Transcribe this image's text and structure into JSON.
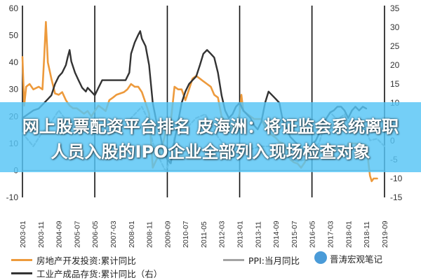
{
  "chart_data": {
    "type": "line",
    "title": "",
    "xlabel": "",
    "ylabel": "",
    "y_left": {
      "min": -10,
      "max": 60,
      "ticks": [
        "-10",
        "0",
        "10",
        "20",
        "30",
        "40",
        "50",
        "60"
      ]
    },
    "y_right": {
      "min": -15,
      "max": 35,
      "ticks": [
        "-15",
        "-10",
        "-5",
        "0",
        "5",
        "10",
        "15",
        "20",
        "25",
        "30",
        "35"
      ]
    },
    "x_range": [
      2003.0,
      2019.67
    ],
    "x_ticks": [
      "2003-01",
      "2003-11",
      "2004-09",
      "2005-07",
      "2006-05",
      "2007-03",
      "2008-01",
      "2008-11",
      "2009-09",
      "2010-07",
      "2011-05",
      "2012-03",
      "2013-01",
      "2013-11",
      "2014-09",
      "2015-07",
      "2016-05",
      "2017-03",
      "2018-01",
      "2018-11",
      "2019-09"
    ],
    "vlines": [
      2003.0,
      2006.33,
      2009.67,
      2013.0,
      2016.33,
      2019.67
    ],
    "series": [
      {
        "name": "房地产开发投资:累计同比",
        "axis": "left",
        "color": "#ED9A3C",
        "points": [
          [
            2003.0,
            42
          ],
          [
            2003.08,
            24
          ],
          [
            2003.17,
            31
          ],
          [
            2003.33,
            32
          ],
          [
            2003.5,
            30
          ],
          [
            2003.75,
            31
          ],
          [
            2003.92,
            30
          ],
          [
            2004.0,
            42
          ],
          [
            2004.08,
            55
          ],
          [
            2004.17,
            40
          ],
          [
            2004.33,
            34
          ],
          [
            2004.5,
            28.5
          ],
          [
            2004.67,
            28
          ],
          [
            2004.83,
            29
          ],
          [
            2005.0,
            26
          ],
          [
            2005.17,
            24
          ],
          [
            2005.33,
            23
          ],
          [
            2005.5,
            23
          ],
          [
            2005.67,
            22
          ],
          [
            2005.83,
            21
          ],
          [
            2006.0,
            22
          ],
          [
            2006.17,
            20
          ],
          [
            2006.33,
            22
          ],
          [
            2006.5,
            24
          ],
          [
            2006.67,
            23
          ],
          [
            2006.83,
            22
          ],
          [
            2007.0,
            26
          ],
          [
            2007.17,
            27
          ],
          [
            2007.33,
            28
          ],
          [
            2007.5,
            28.5
          ],
          [
            2007.67,
            29
          ],
          [
            2007.83,
            30
          ],
          [
            2008.0,
            32
          ],
          [
            2008.17,
            31
          ],
          [
            2008.33,
            31
          ],
          [
            2008.5,
            29
          ],
          [
            2008.67,
            25
          ],
          [
            2008.83,
            21
          ],
          [
            2009.0,
            1
          ],
          [
            2009.17,
            4
          ],
          [
            2009.33,
            6
          ],
          [
            2009.5,
            11
          ],
          [
            2009.67,
            17
          ],
          [
            2009.83,
            18
          ],
          [
            2010.0,
            31
          ],
          [
            2010.17,
            30
          ],
          [
            2010.33,
            30
          ],
          [
            2010.5,
            26
          ],
          [
            2010.67,
            30
          ],
          [
            2010.83,
            34
          ],
          [
            2011.0,
            35
          ],
          [
            2011.17,
            34
          ],
          [
            2011.33,
            33
          ],
          [
            2011.5,
            32
          ],
          [
            2011.67,
            31
          ],
          [
            2011.83,
            28
          ],
          [
            2012.0,
            27
          ],
          [
            2012.17,
            20
          ],
          [
            2012.33,
            18
          ],
          [
            2012.5,
            15
          ],
          [
            2012.67,
            16
          ],
          [
            2012.83,
            17
          ],
          [
            2013.0,
            21
          ],
          [
            2013.08,
            28
          ],
          [
            2013.17,
            22
          ],
          [
            2013.33,
            21
          ],
          [
            2013.5,
            20
          ],
          [
            2013.67,
            19
          ],
          [
            2013.83,
            19
          ],
          [
            2014.0,
            19
          ],
          [
            2014.17,
            16
          ],
          [
            2014.33,
            14
          ],
          [
            2014.5,
            13
          ],
          [
            2014.67,
            12
          ],
          [
            2014.83,
            10.5
          ],
          [
            2015.0,
            10
          ],
          [
            2015.17,
            8
          ],
          [
            2015.33,
            4
          ],
          [
            2015.5,
            3
          ],
          [
            2015.67,
            2.5
          ],
          [
            2015.83,
            1
          ],
          [
            2016.0,
            3
          ],
          [
            2016.17,
            7
          ],
          [
            2016.33,
            6
          ],
          [
            2016.5,
            5.5
          ],
          [
            2016.67,
            6
          ],
          [
            2016.83,
            7
          ],
          [
            2017.0,
            9
          ],
          [
            2017.17,
            9.5
          ],
          [
            2017.33,
            8
          ],
          [
            2017.5,
            8
          ],
          [
            2017.67,
            7.5
          ],
          [
            2017.83,
            7
          ],
          [
            2018.0,
            10
          ],
          [
            2018.17,
            10
          ],
          [
            2018.33,
            10
          ],
          [
            2018.5,
            9.5
          ],
          [
            2018.67,
            9.5
          ],
          [
            2018.83,
            9.5
          ],
          [
            2019.0,
            -2
          ],
          [
            2019.08,
            -4
          ],
          [
            2019.17,
            -3
          ],
          [
            2019.33,
            -3
          ]
        ]
      },
      {
        "name": "PPI:当月同比",
        "axis": "right",
        "color": "#A3A3A3",
        "dashed": true,
        "points": [
          [
            2003.0,
            2
          ],
          [
            2003.5,
            -1.5
          ],
          [
            2003.83,
            1.5
          ],
          [
            2004.33,
            5
          ],
          [
            2004.67,
            8
          ],
          [
            2005.0,
            5.5
          ],
          [
            2005.33,
            5
          ],
          [
            2005.67,
            4
          ],
          [
            2006.0,
            3
          ],
          [
            2006.33,
            3.5
          ],
          [
            2006.67,
            3.5
          ],
          [
            2007.0,
            3
          ],
          [
            2007.33,
            2.5
          ],
          [
            2007.67,
            3
          ],
          [
            2008.0,
            6
          ],
          [
            2008.5,
            9
          ],
          [
            2008.83,
            5
          ],
          [
            2009.0,
            -0.5
          ],
          [
            2009.33,
            -5
          ],
          [
            2009.58,
            -8
          ],
          [
            2009.83,
            -5
          ],
          [
            2010.0,
            1
          ],
          [
            2010.33,
            6
          ],
          [
            2010.67,
            4
          ],
          [
            2011.0,
            6
          ],
          [
            2011.42,
            7
          ],
          [
            2011.83,
            3
          ],
          [
            2012.0,
            1
          ],
          [
            2012.33,
            -1.5
          ],
          [
            2012.67,
            -3.5
          ],
          [
            2013.0,
            -2
          ],
          [
            2013.33,
            -2.5
          ],
          [
            2013.67,
            -2
          ],
          [
            2014.0,
            -1.5
          ],
          [
            2014.33,
            -1.5
          ],
          [
            2014.67,
            -2
          ],
          [
            2015.0,
            -4
          ],
          [
            2015.33,
            -4.5
          ],
          [
            2015.67,
            -5.5
          ],
          [
            2016.0,
            -5
          ],
          [
            2016.33,
            -3
          ],
          [
            2016.67,
            -0.5
          ],
          [
            2017.0,
            6
          ],
          [
            2017.17,
            7.5
          ],
          [
            2017.5,
            5.5
          ],
          [
            2017.83,
            7
          ],
          [
            2018.0,
            4
          ],
          [
            2018.5,
            4
          ],
          [
            2018.83,
            2.5
          ],
          [
            2019.0,
            0.1
          ],
          [
            2019.33,
            0.5
          ],
          [
            2019.67,
            -1.5
          ]
        ]
      },
      {
        "name": "工业产成品存货:累计同比（右）",
        "axis": "right",
        "color": "#333333",
        "points": [
          [
            2003.0,
            6
          ],
          [
            2003.25,
            7
          ],
          [
            2003.5,
            8
          ],
          [
            2003.75,
            8.5
          ],
          [
            2004.0,
            10
          ],
          [
            2004.17,
            11
          ],
          [
            2004.33,
            12
          ],
          [
            2004.5,
            15
          ],
          [
            2004.67,
            17
          ],
          [
            2004.83,
            18
          ],
          [
            2005.0,
            20
          ],
          [
            2005.08,
            22
          ],
          [
            2005.17,
            24
          ],
          [
            2005.25,
            21
          ],
          [
            2005.42,
            18
          ],
          [
            2005.58,
            16
          ],
          [
            2005.75,
            14
          ],
          [
            2005.92,
            13
          ],
          [
            2006.0,
            14
          ],
          [
            2006.17,
            13
          ],
          [
            2006.33,
            12
          ],
          [
            2006.5,
            14
          ],
          [
            2006.67,
            16
          ],
          [
            2006.83,
            16
          ],
          [
            2007.0,
            16
          ],
          [
            2007.25,
            16
          ],
          [
            2007.5,
            16
          ],
          [
            2007.75,
            16
          ],
          [
            2007.92,
            18
          ],
          [
            2008.0,
            23
          ],
          [
            2008.17,
            26
          ],
          [
            2008.33,
            28
          ],
          [
            2008.42,
            29
          ],
          [
            2008.5,
            27
          ],
          [
            2008.67,
            25
          ],
          [
            2008.83,
            20
          ],
          [
            2009.0,
            10
          ],
          [
            2009.17,
            5
          ],
          [
            2009.33,
            2
          ],
          [
            2009.5,
            -3
          ],
          [
            2009.67,
            -5
          ],
          [
            2009.83,
            -6
          ],
          [
            2010.0,
            0
          ],
          [
            2010.17,
            5
          ],
          [
            2010.33,
            10
          ],
          [
            2010.5,
            13
          ],
          [
            2010.67,
            15
          ],
          [
            2010.83,
            16
          ],
          [
            2011.0,
            17
          ],
          [
            2011.17,
            20
          ],
          [
            2011.33,
            23
          ],
          [
            2011.5,
            24
          ],
          [
            2011.67,
            23
          ],
          [
            2011.83,
            22
          ],
          [
            2012.0,
            18
          ],
          [
            2012.17,
            12
          ],
          [
            2012.33,
            8
          ],
          [
            2012.5,
            6
          ],
          [
            2012.67,
            7
          ],
          [
            2012.83,
            9
          ],
          [
            2013.0,
            10
          ],
          [
            2013.17,
            8
          ],
          [
            2013.33,
            7
          ],
          [
            2013.5,
            6
          ],
          [
            2013.67,
            4
          ],
          [
            2013.83,
            3
          ],
          [
            2014.0,
            5
          ],
          [
            2014.17,
            10
          ],
          [
            2014.33,
            13
          ],
          [
            2014.5,
            12
          ],
          [
            2014.67,
            11
          ],
          [
            2014.83,
            10
          ],
          [
            2015.0,
            5
          ],
          [
            2015.17,
            3
          ],
          [
            2015.33,
            1
          ],
          [
            2015.5,
            0
          ],
          [
            2015.67,
            -1
          ],
          [
            2015.83,
            -2
          ],
          [
            2016.0,
            -3
          ],
          [
            2016.17,
            -2.5
          ],
          [
            2016.33,
            -1
          ],
          [
            2016.5,
            0
          ],
          [
            2016.67,
            2
          ],
          [
            2016.83,
            4
          ],
          [
            2017.0,
            6
          ],
          [
            2017.17,
            7.5
          ],
          [
            2017.33,
            8
          ],
          [
            2017.5,
            9
          ],
          [
            2017.67,
            9
          ],
          [
            2017.83,
            8
          ],
          [
            2018.0,
            6
          ],
          [
            2018.17,
            8
          ],
          [
            2018.33,
            9
          ],
          [
            2018.5,
            8
          ],
          [
            2018.67,
            9
          ],
          [
            2018.83,
            8.5
          ]
        ]
      }
    ]
  },
  "banner": {
    "line1": "网上股票配资平台排名 皮海洲：将证监会系统离职",
    "line2": "人员入股的IPO企业全部列入现场检查对象"
  },
  "watermark": "晋涛宏观笔记"
}
